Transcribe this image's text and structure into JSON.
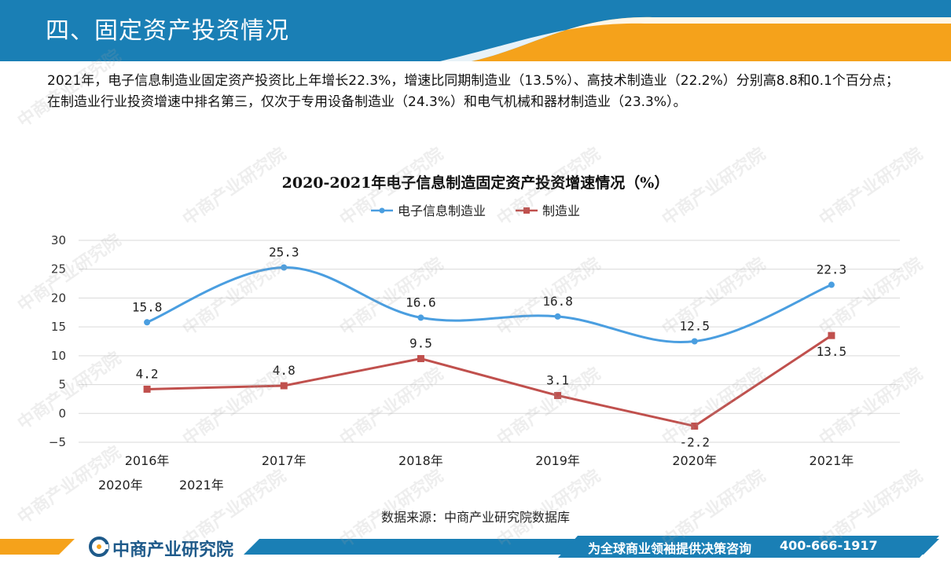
{
  "header": {
    "title": "四、固定资产投资情况",
    "bar_color": "#1a7fb5",
    "accent_color": "#f5a21b"
  },
  "body": {
    "paragraph": "2021年，电子信息制造业固定资产投资比上年增长22.3%，增速比同期制造业（13.5%）、高技术制造业（22.2%）分别高8.8和0.1个百分点；在制造业行业投资增速中排名第三，仅次于专用设备制造业（24.3%）和电气机械和器材制造业（23.3%）。"
  },
  "chart_data": {
    "type": "line",
    "title": "2020-2021年电子信息制造固定资产投资增速情况（%）",
    "categories": [
      "2016年",
      "2017年",
      "2018年",
      "2019年",
      "2020年",
      "2021年"
    ],
    "series": [
      {
        "name": "电子信息制造业",
        "values": [
          15.8,
          25.3,
          16.6,
          16.8,
          12.5,
          22.3
        ],
        "color": "#4a9ee0",
        "smooth": true,
        "marker": "circle"
      },
      {
        "name": "制造业",
        "values": [
          4.2,
          4.8,
          9.5,
          3.1,
          -2.2,
          13.5
        ],
        "color": "#c0504d",
        "smooth": false,
        "marker": "square"
      }
    ],
    "ylim": [
      -5,
      30
    ],
    "yticks": [
      -5,
      0,
      5,
      10,
      15,
      20,
      25,
      30
    ],
    "ytick_labels": [
      "−5",
      "0",
      "5",
      "10",
      "15",
      "20",
      "25",
      "30"
    ],
    "data_labels": [
      [
        "15.8",
        "25.3",
        "16.6",
        "16.8",
        "12.5",
        "22.3"
      ],
      [
        "4.2",
        "4.8",
        "9.5",
        "3.1",
        "-2.2",
        "13.5"
      ]
    ],
    "grid": true,
    "legend_position": "top"
  },
  "extra_labels": [
    "2020年",
    "2021年"
  ],
  "source": "数据来源：中商产业研究院数据库",
  "footer": {
    "brand": "中商产业研究院",
    "slogan": "为全球商业领袖提供决策咨询",
    "phone": "400-666-1917",
    "logo_icon": "company-logo-icon"
  },
  "watermark": {
    "text": "中商产业研究院"
  }
}
